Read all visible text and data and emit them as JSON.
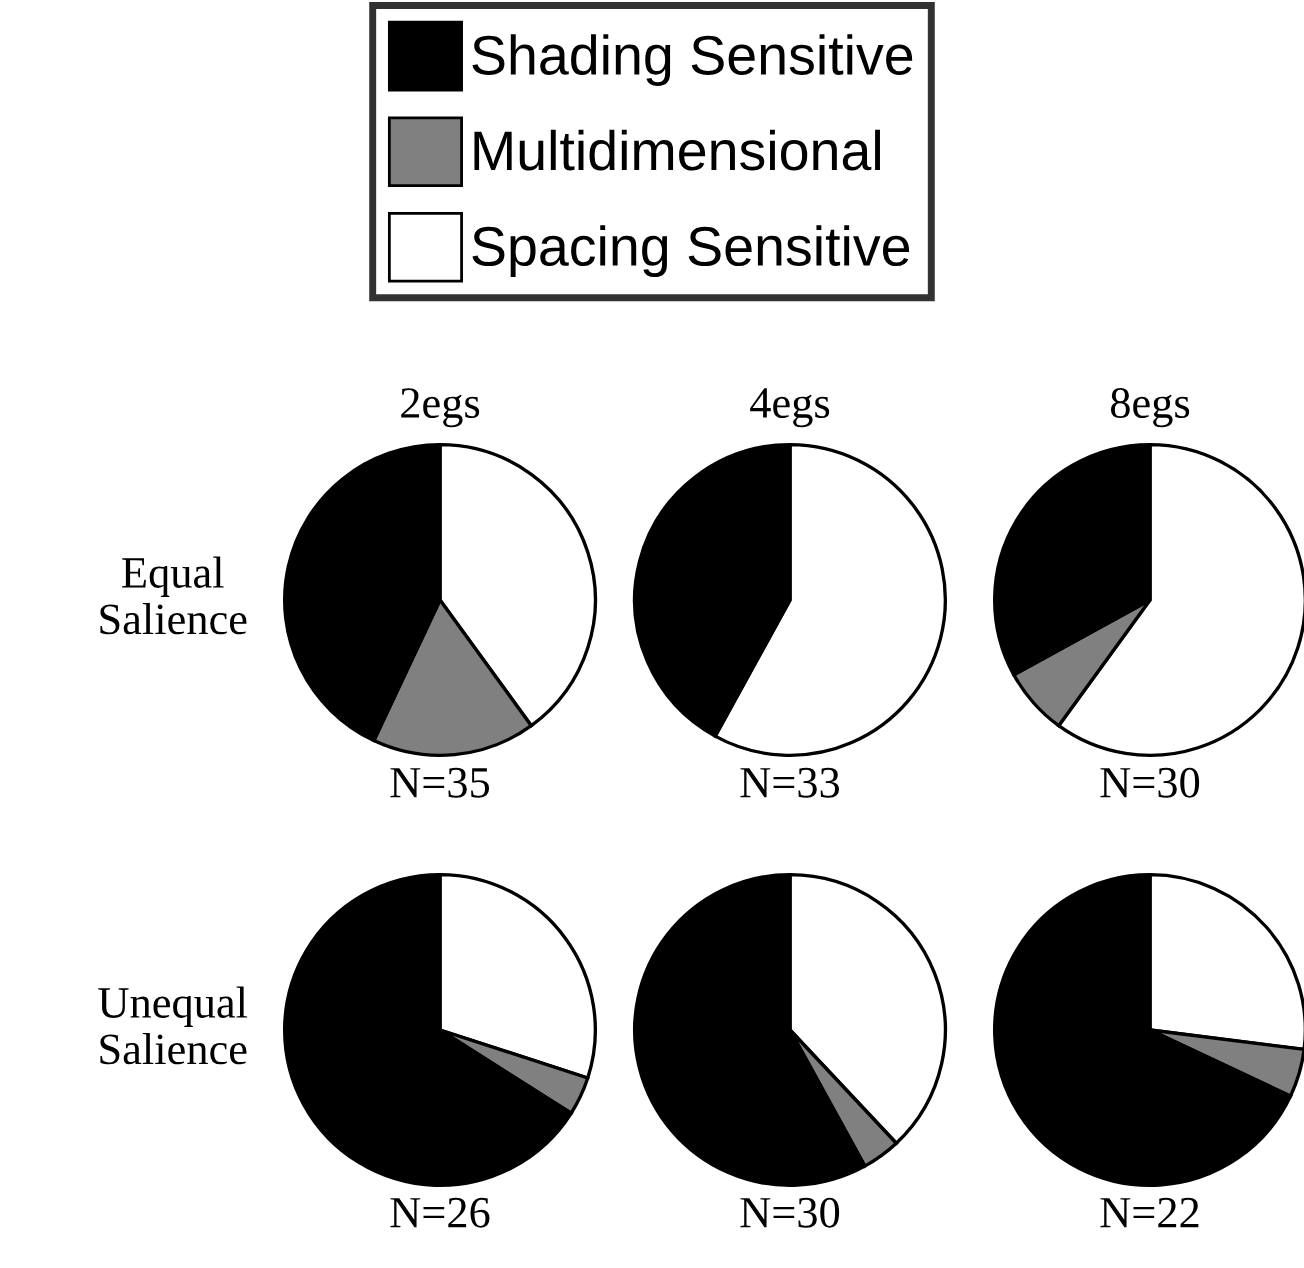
{
  "chart_data": [
    {
      "type": "pie",
      "title": "2egs",
      "ylabel": "Equal\nSalience",
      "legend": "top",
      "categories": [
        "Spacing Sensitive",
        "Multidimensional",
        "Shading Sensitive"
      ],
      "values": [
        40,
        17,
        43
      ],
      "colors": [
        "#ffffff",
        "#808080",
        "#000000"
      ],
      "annotations": [
        "N=35"
      ]
    },
    {
      "type": "pie",
      "title": "4egs",
      "values": [
        58,
        0,
        42
      ],
      "colors": [
        "#ffffff",
        "#808080",
        "#000000"
      ],
      "annotations": [
        "N=33"
      ]
    },
    {
      "type": "pie",
      "title": "8egs",
      "values": [
        60,
        7,
        33
      ],
      "colors": [
        "#ffffff",
        "#808080",
        "#000000"
      ],
      "annotations": [
        "N=30"
      ]
    },
    {
      "type": "pie",
      "ylabel": "Unequal\nSalience",
      "values": [
        30,
        4,
        66
      ],
      "colors": [
        "#ffffff",
        "#808080",
        "#000000"
      ],
      "annotations": [
        "N=26"
      ]
    },
    {
      "type": "pie",
      "values": [
        38,
        4,
        58
      ],
      "colors": [
        "#ffffff",
        "#808080",
        "#000000"
      ],
      "annotations": [
        "N=30"
      ]
    },
    {
      "type": "pie",
      "values": [
        27,
        5,
        68
      ],
      "colors": [
        "#ffffff",
        "#808080",
        "#000000"
      ],
      "annotations": [
        "N=22"
      ]
    }
  ]
}
